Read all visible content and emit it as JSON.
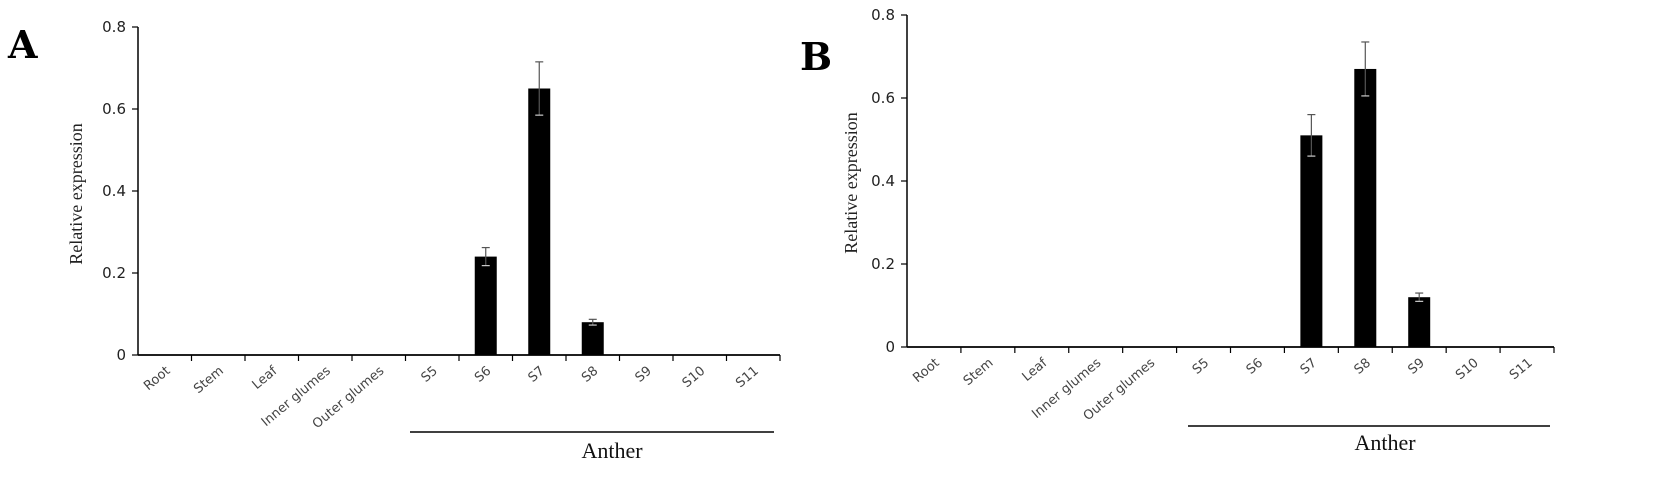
{
  "chart_data": [
    {
      "panel": "A",
      "type": "bar",
      "ylabel": "Relative expression",
      "ylim": [
        0,
        0.8
      ],
      "yticks": [
        "0",
        "0.2",
        "0.4",
        "0.6",
        "0.8"
      ],
      "categories": [
        "Root",
        "Stem",
        "Leaf",
        "Inner glumes",
        "Outer glumes",
        "S5",
        "S6",
        "S7",
        "S8",
        "S9",
        "S10",
        "S11"
      ],
      "values": [
        0,
        0,
        0,
        0,
        0,
        0,
        0.24,
        0.65,
        0.08,
        0,
        0,
        0
      ],
      "errors": [
        0,
        0,
        0,
        0,
        0,
        0,
        0.022,
        0.065,
        0.007,
        0,
        0,
        0
      ],
      "group_label": "Anther",
      "group_range": [
        "S5",
        "S11"
      ],
      "grid": false,
      "bar_color": "#000000"
    },
    {
      "panel": "B",
      "type": "bar",
      "ylabel": "Relative expression",
      "ylim": [
        0,
        0.8
      ],
      "yticks": [
        "0",
        "0.2",
        "0.4",
        "0.6",
        "0.8"
      ],
      "categories": [
        "Root",
        "Stem",
        "Leaf",
        "Inner glumes",
        "Outer glumes",
        "S5",
        "S6",
        "S7",
        "S8",
        "S9",
        "S10",
        "S11"
      ],
      "values": [
        0,
        0,
        0,
        0,
        0,
        0,
        0,
        0.51,
        0.67,
        0.12,
        0,
        0
      ],
      "errors": [
        0,
        0,
        0,
        0,
        0,
        0,
        0,
        0.05,
        0.065,
        0.01,
        0,
        0
      ],
      "group_label": "Anther",
      "group_range": [
        "S5",
        "S11"
      ],
      "grid": false,
      "bar_color": "#000000"
    }
  ]
}
